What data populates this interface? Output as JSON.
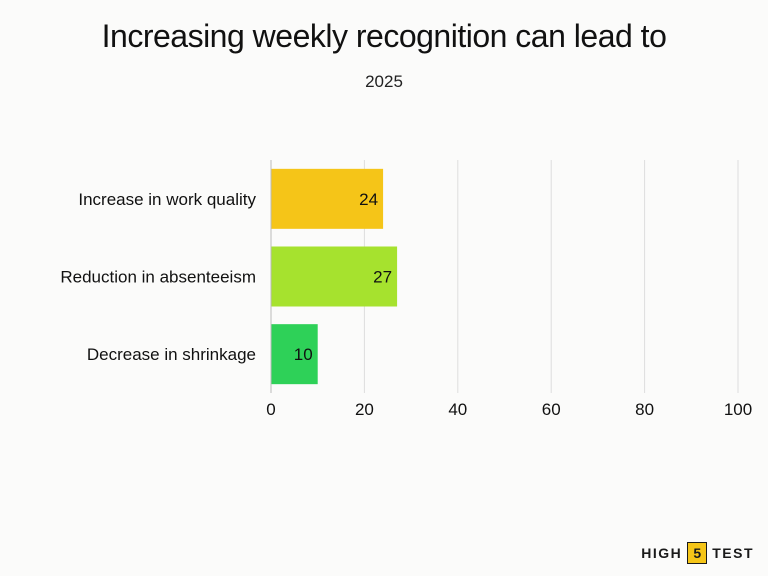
{
  "chart_data": {
    "type": "bar",
    "orientation": "horizontal",
    "title": "Increasing weekly recognition can lead to",
    "subtitle": "2025",
    "categories": [
      "Increase in work quality",
      "Reduction in absenteeism",
      "Decrease in shrinkage"
    ],
    "values": [
      24,
      27,
      10
    ],
    "colors": [
      "#f5c518",
      "#a6e22e",
      "#2ed158"
    ],
    "xlim": [
      0,
      100
    ],
    "xticks": [
      0,
      20,
      40,
      60,
      80,
      100
    ],
    "grid": true,
    "legend": "none"
  },
  "brand": {
    "left": "HIGH",
    "middle": "5",
    "right": "TEST"
  }
}
